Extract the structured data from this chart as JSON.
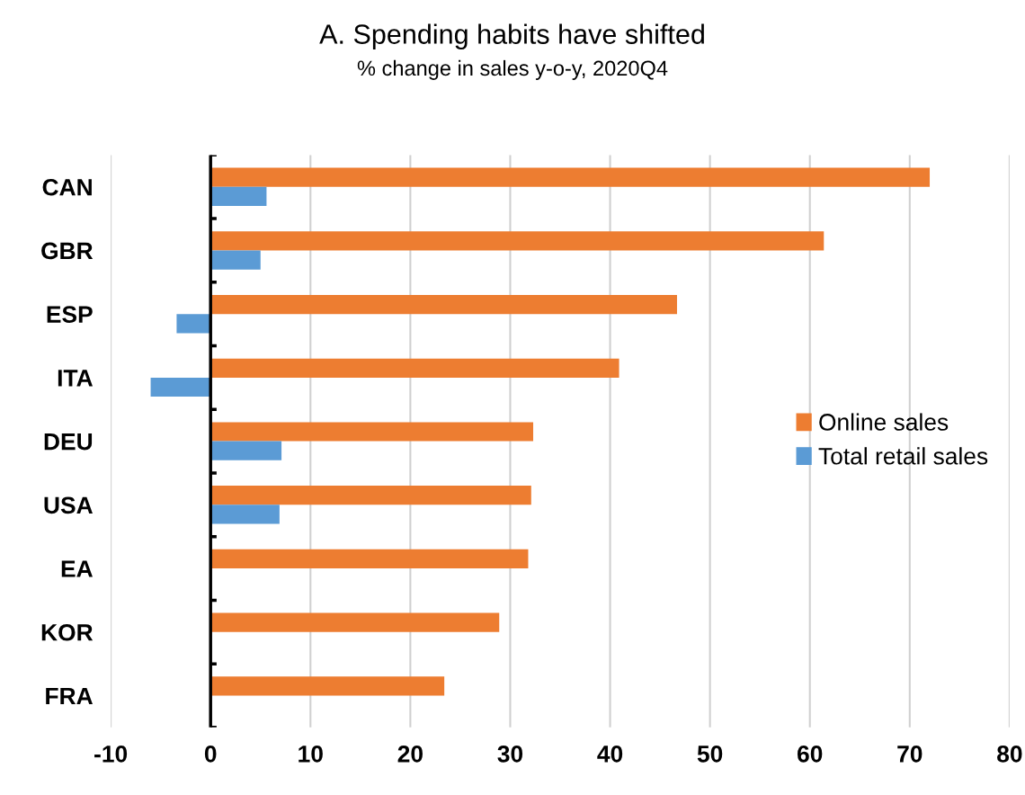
{
  "chart_data": {
    "type": "bar",
    "orientation": "horizontal",
    "title": "A. Spending habits have shifted",
    "subtitle": "% change in sales y-o-y, 2020Q4",
    "categories": [
      "CAN",
      "GBR",
      "ESP",
      "ITA",
      "DEU",
      "USA",
      "EA",
      "KOR",
      "FRA"
    ],
    "series": [
      {
        "name": "Online sales",
        "color": "#ed7d31",
        "values": [
          72.0,
          61.4,
          46.7,
          40.9,
          32.3,
          32.1,
          31.8,
          28.9,
          23.4
        ]
      },
      {
        "name": "Total retail sales",
        "color": "#5b9bd5",
        "values": [
          5.6,
          5.0,
          -3.4,
          -6.0,
          7.1,
          6.9,
          null,
          null,
          null
        ]
      }
    ],
    "xlim": [
      -10,
      80
    ],
    "xticks": [
      -10,
      0,
      10,
      20,
      30,
      40,
      50,
      60,
      70,
      80
    ],
    "grid": "x",
    "legend": "right"
  }
}
